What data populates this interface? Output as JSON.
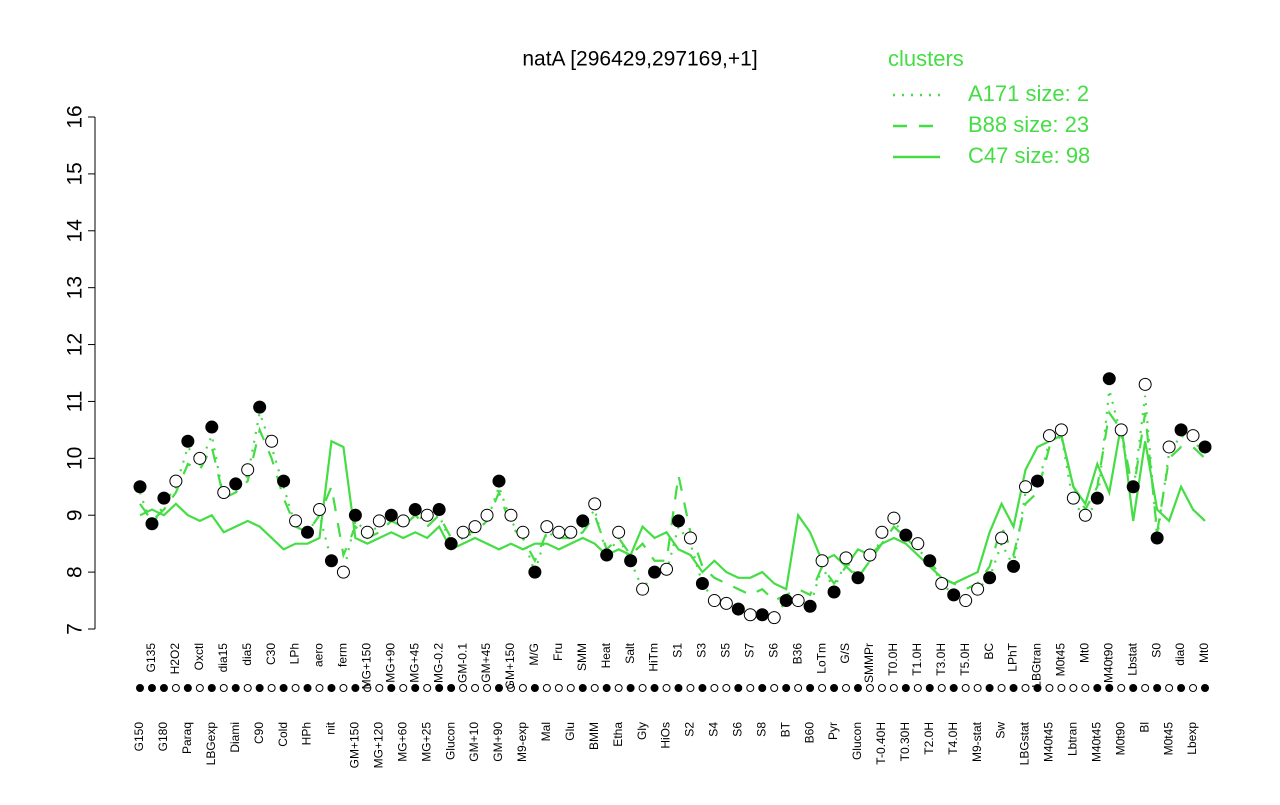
{
  "chart_data": {
    "type": "line",
    "title": "natA [296429,297169,+1]",
    "categories": [
      "G150",
      "G135",
      "G180",
      "H2O2",
      "Paraq",
      "Oxctl",
      "LBGexp",
      "dia15",
      "Diami",
      "dia5",
      "C90",
      "C30",
      "Cold",
      "LPh",
      "HPh",
      "aero",
      "nit",
      "ferm",
      "GM+150",
      "MG+150",
      "MG+120",
      "MG+90",
      "MG+60",
      "MG+45",
      "MG+25",
      "MG-0.2",
      "Glucon",
      "GM-0.1",
      "GM+10",
      "GM+45",
      "GM+90",
      "GM+150",
      "M9-exp",
      "M/G",
      "Mal",
      "Fru",
      "Glu",
      "SMM",
      "BMM",
      "Heat",
      "Etha",
      "Salt",
      "Gly",
      "HiTm",
      "HiOs",
      "S1",
      "S2",
      "S3",
      "S4",
      "S5",
      "S6",
      "S7",
      "S8",
      "S6",
      "BT",
      "B36",
      "B60",
      "LoTm",
      "Pyr",
      "G/S",
      "Glucon",
      "SMMPr",
      "T-0.40H",
      "T0.0H",
      "T0.30H",
      "T1.0H",
      "T2.0H",
      "T3.0H",
      "T4.0H",
      "T5.0H",
      "M9-stat",
      "BC",
      "Sw",
      "LPhT",
      "LBGstat",
      "LBGtran",
      "M40t45",
      "M0t45",
      "Lbtran",
      "Mt0",
      "M40t45",
      "M40t90",
      "M0t90",
      "Lbstat",
      "Bl",
      "S0",
      "M0t45",
      "dia0",
      "Lbexp",
      "Mt0"
    ],
    "points": {
      "values": [
        9.5,
        8.85,
        9.3,
        9.6,
        10.3,
        10.0,
        10.55,
        9.4,
        9.55,
        9.8,
        10.9,
        10.3,
        9.6,
        8.9,
        8.7,
        9.1,
        8.2,
        8.0,
        9.0,
        8.7,
        8.9,
        9.0,
        8.9,
        9.1,
        9.0,
        9.1,
        8.5,
        8.7,
        8.8,
        9.0,
        9.6,
        9.0,
        8.7,
        8.0,
        8.8,
        8.7,
        8.7,
        8.9,
        9.2,
        8.3,
        8.7,
        8.2,
        7.7,
        8.0,
        8.05,
        8.9,
        8.6,
        7.8,
        7.5,
        7.45,
        7.35,
        7.25,
        7.25,
        7.2,
        7.5,
        7.5,
        7.4,
        8.2,
        7.65,
        8.25,
        7.9,
        8.3,
        8.7,
        8.95,
        8.65,
        8.5,
        8.2,
        7.8,
        7.6,
        7.5,
        7.7,
        7.9,
        8.6,
        8.1,
        9.5,
        9.6,
        10.4,
        10.5,
        9.3,
        9.0,
        9.3,
        11.4,
        10.5,
        9.5,
        11.3,
        8.6,
        10.2,
        10.5,
        10.4,
        10.2
      ],
      "colors": [
        "#000",
        "#000",
        "#000",
        "#fff",
        "#000",
        "#fff",
        "#000",
        "#fff",
        "#000",
        "#fff",
        "#000",
        "#fff",
        "#000",
        "#fff",
        "#000",
        "#fff",
        "#000",
        "#fff",
        "#000",
        "#fff",
        "#fff",
        "#000",
        "#fff",
        "#000",
        "#fff",
        "#000",
        "#000",
        "#fff",
        "#fff",
        "#fff",
        "#000",
        "#fff",
        "#fff",
        "#000",
        "#fff",
        "#fff",
        "#fff",
        "#000",
        "#fff",
        "#000",
        "#fff",
        "#000",
        "#fff",
        "#000",
        "#fff",
        "#000",
        "#fff",
        "#000",
        "#fff",
        "#fff",
        "#000",
        "#fff",
        "#000",
        "#fff",
        "#000",
        "#fff",
        "#000",
        "#fff",
        "#000",
        "#fff",
        "#000",
        "#fff",
        "#fff",
        "#fff",
        "#000",
        "#fff",
        "#000",
        "#fff",
        "#000",
        "#fff",
        "#fff",
        "#000",
        "#fff",
        "#000",
        "#fff",
        "#000",
        "#fff",
        "#fff",
        "#fff",
        "#fff",
        "#000",
        "#000",
        "#fff",
        "#000",
        "#fff",
        "#000",
        "#fff",
        "#000",
        "#fff",
        "#000"
      ]
    },
    "series": [
      {
        "name": "A171 size: 2",
        "color": "#44dd44",
        "dash": "dotted",
        "values": [
          9.4,
          8.8,
          9.2,
          9.5,
          10.2,
          9.9,
          10.4,
          9.3,
          9.5,
          9.7,
          10.8,
          10.2,
          9.5,
          8.8,
          8.7,
          9.0,
          8.2,
          8.0,
          8.9,
          8.7,
          8.8,
          8.9,
          8.8,
          9.0,
          8.9,
          9.0,
          8.5,
          8.6,
          8.7,
          8.9,
          9.5,
          8.9,
          8.6,
          8.0,
          8.7,
          8.6,
          8.6,
          8.8,
          9.1,
          8.3,
          8.6,
          8.2,
          7.7,
          8.0,
          8.0,
          8.8,
          8.5,
          7.8,
          7.5,
          7.4,
          7.3,
          7.3,
          7.3,
          7.2,
          7.5,
          7.5,
          7.4,
          8.1,
          7.7,
          8.2,
          7.9,
          8.2,
          8.6,
          8.9,
          8.6,
          8.4,
          8.2,
          7.8,
          7.6,
          7.5,
          7.7,
          7.9,
          8.5,
          8.1,
          9.4,
          9.5,
          10.3,
          10.4,
          9.2,
          9.0,
          9.2,
          11.2,
          10.4,
          9.4,
          11.1,
          8.6,
          10.1,
          10.4,
          10.3,
          10.1
        ]
      },
      {
        "name": "B88 size: 23",
        "color": "#44dd44",
        "dash": "dashed",
        "values": [
          9.2,
          8.9,
          9.1,
          9.4,
          9.9,
          9.8,
          10.2,
          9.3,
          9.4,
          9.6,
          10.5,
          10.0,
          9.3,
          8.8,
          8.7,
          9.0,
          9.5,
          8.3,
          8.8,
          8.6,
          8.7,
          8.9,
          8.8,
          9.0,
          8.8,
          9.0,
          8.6,
          8.7,
          8.7,
          8.9,
          9.4,
          8.8,
          8.6,
          8.2,
          8.7,
          8.6,
          8.6,
          8.7,
          9.0,
          8.4,
          8.6,
          8.3,
          8.5,
          8.2,
          8.2,
          9.7,
          8.7,
          8.1,
          7.9,
          7.8,
          7.7,
          7.6,
          7.7,
          7.5,
          7.6,
          7.7,
          7.6,
          8.1,
          7.8,
          8.1,
          7.9,
          8.2,
          8.5,
          8.8,
          8.6,
          8.4,
          8.2,
          7.9,
          7.8,
          7.7,
          7.8,
          8.1,
          8.8,
          8.3,
          9.2,
          9.4,
          10.2,
          10.4,
          9.5,
          9.1,
          9.5,
          10.8,
          10.5,
          9.4,
          10.8,
          8.7,
          10.0,
          10.2,
          10.2,
          10.0
        ]
      },
      {
        "name": "C47 size: 98",
        "color": "#44dd44",
        "dash": "solid",
        "values": [
          9.0,
          9.1,
          9.0,
          9.2,
          9.0,
          8.9,
          9.0,
          8.7,
          8.8,
          8.9,
          8.8,
          8.6,
          8.4,
          8.5,
          8.5,
          8.6,
          10.3,
          10.2,
          8.6,
          8.5,
          8.6,
          8.7,
          8.6,
          8.7,
          8.6,
          8.8,
          8.4,
          8.5,
          8.6,
          8.5,
          8.4,
          8.5,
          8.4,
          8.5,
          8.5,
          8.4,
          8.5,
          8.6,
          8.5,
          8.3,
          8.4,
          8.3,
          8.8,
          8.6,
          8.7,
          8.4,
          8.3,
          8.0,
          8.2,
          8.0,
          7.9,
          7.9,
          8.0,
          7.8,
          7.7,
          9.0,
          8.7,
          8.2,
          8.3,
          8.1,
          8.4,
          8.3,
          8.5,
          8.6,
          8.5,
          8.3,
          8.1,
          7.9,
          7.8,
          7.9,
          8.0,
          8.7,
          9.2,
          8.8,
          9.8,
          10.2,
          10.3,
          10.4,
          9.5,
          9.2,
          9.9,
          9.4,
          10.6,
          8.9,
          10.3,
          9.1,
          8.9,
          9.5,
          9.1,
          8.9
        ]
      }
    ],
    "legend_title": "clusters",
    "legend": "upper right",
    "ylim": [
      7,
      16
    ],
    "yticks": [
      7,
      8,
      9,
      10,
      11,
      12,
      13,
      14,
      15,
      16
    ]
  }
}
